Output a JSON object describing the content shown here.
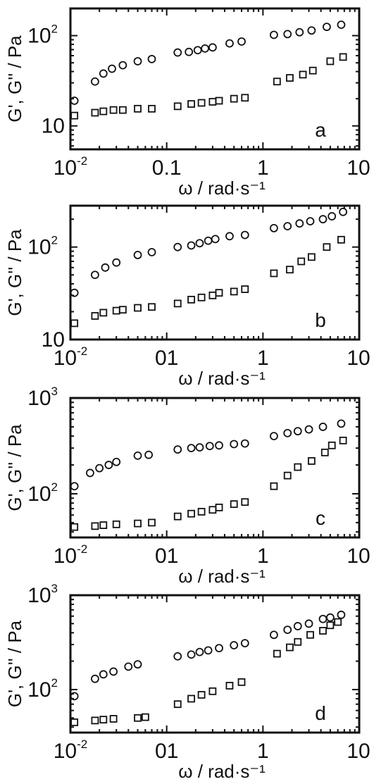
{
  "chart_data": [
    {
      "type": "scatter",
      "panel": "a",
      "xscale": "log",
      "yscale": "log",
      "xlim": [
        0.01,
        10
      ],
      "ylim": [
        5.5,
        200
      ],
      "xticks": [
        {
          "v": 0.01,
          "base": "10",
          "exp": "-2"
        },
        {
          "v": 0.1,
          "base": "0.1",
          "exp": ""
        },
        {
          "v": 1,
          "base": "1",
          "exp": ""
        },
        {
          "v": 10,
          "base": "10",
          "exp": ""
        }
      ],
      "yticks": [
        {
          "v": 10,
          "base": "10",
          "exp": ""
        },
        {
          "v": 100,
          "base": "10",
          "exp": "2"
        }
      ],
      "xlabel": "ω / rad·s⁻¹",
      "ylabel": "G', G'' / Pa",
      "series": [
        {
          "marker": "circle",
          "x": [
            0.011,
            0.018,
            0.022,
            0.027,
            0.035,
            0.05,
            0.07,
            0.13,
            0.17,
            0.21,
            0.25,
            0.3,
            0.45,
            0.6,
            1.3,
            1.8,
            2.4,
            3.2,
            4.6,
            6.5
          ],
          "y": [
            19,
            31,
            38,
            43,
            47,
            52,
            55,
            65,
            66,
            69,
            72,
            74,
            82,
            86,
            102,
            104,
            109,
            114,
            125,
            132
          ]
        },
        {
          "marker": "square",
          "x": [
            0.011,
            0.018,
            0.022,
            0.028,
            0.035,
            0.05,
            0.07,
            0.13,
            0.18,
            0.23,
            0.3,
            0.35,
            0.5,
            0.65,
            1.4,
            1.9,
            2.6,
            3.3,
            5.0,
            6.8
          ],
          "y": [
            13,
            14,
            14.5,
            15,
            15,
            15.5,
            15.5,
            16.5,
            17.5,
            18,
            18.5,
            19,
            20,
            20.5,
            31,
            34,
            37,
            41,
            52,
            58
          ]
        }
      ]
    },
    {
      "type": "scatter",
      "panel": "b",
      "xscale": "log",
      "yscale": "log",
      "xlim": [
        0.01,
        10
      ],
      "ylim": [
        10,
        280
      ],
      "xticks": [
        {
          "v": 0.01,
          "base": "10",
          "exp": "-2"
        },
        {
          "v": 0.1,
          "base": "01",
          "exp": ""
        },
        {
          "v": 1,
          "base": "1",
          "exp": ""
        },
        {
          "v": 10,
          "base": "10",
          "exp": ""
        }
      ],
      "yticks": [
        {
          "v": 10,
          "base": "10",
          "exp": ""
        },
        {
          "v": 100,
          "base": "10",
          "exp": "2"
        }
      ],
      "xlabel": "ω / rad·s⁻¹",
      "ylabel": "G', G'' / Pa",
      "series": [
        {
          "marker": "circle",
          "x": [
            0.011,
            0.018,
            0.023,
            0.03,
            0.05,
            0.07,
            0.13,
            0.18,
            0.22,
            0.27,
            0.32,
            0.45,
            0.65,
            1.3,
            1.8,
            2.4,
            3.1,
            4.2,
            5.2,
            6.8
          ],
          "y": [
            32,
            50,
            60,
            68,
            82,
            88,
            100,
            104,
            110,
            117,
            122,
            131,
            135,
            160,
            168,
            180,
            190,
            200,
            215,
            240
          ]
        },
        {
          "marker": "square",
          "x": [
            0.011,
            0.018,
            0.022,
            0.03,
            0.035,
            0.05,
            0.07,
            0.13,
            0.18,
            0.23,
            0.3,
            0.35,
            0.5,
            0.65,
            1.3,
            1.9,
            2.5,
            3.2,
            4.6,
            6.5
          ],
          "y": [
            15,
            18,
            19.5,
            20.5,
            21,
            22,
            22.5,
            24.5,
            27,
            28.5,
            30,
            32,
            33,
            35,
            52,
            57,
            70,
            78,
            100,
            120
          ]
        }
      ]
    },
    {
      "type": "scatter",
      "panel": "c",
      "xscale": "log",
      "yscale": "log",
      "xlim": [
        0.01,
        10
      ],
      "ylim": [
        35,
        1000
      ],
      "xticks": [
        {
          "v": 0.01,
          "base": "10",
          "exp": "-2"
        },
        {
          "v": 0.1,
          "base": "01",
          "exp": ""
        },
        {
          "v": 1,
          "base": "1",
          "exp": ""
        },
        {
          "v": 10,
          "base": "10",
          "exp": ""
        }
      ],
      "yticks": [
        {
          "v": 100,
          "base": "10",
          "exp": "2"
        },
        {
          "v": 1000,
          "base": "10",
          "exp": "3"
        }
      ],
      "xlabel": "ω / rad·s⁻¹",
      "ylabel": "G', G'' / Pa",
      "series": [
        {
          "marker": "circle",
          "x": [
            0.011,
            0.016,
            0.02,
            0.025,
            0.03,
            0.05,
            0.065,
            0.13,
            0.18,
            0.22,
            0.28,
            0.35,
            0.5,
            0.65,
            1.3,
            1.8,
            2.3,
            3.0,
            4.2,
            6.5
          ],
          "y": [
            120,
            165,
            185,
            200,
            215,
            250,
            255,
            290,
            300,
            305,
            315,
            320,
            330,
            335,
            400,
            430,
            450,
            470,
            500,
            540
          ]
        },
        {
          "marker": "square",
          "x": [
            0.011,
            0.018,
            0.022,
            0.03,
            0.05,
            0.07,
            0.13,
            0.18,
            0.23,
            0.3,
            0.35,
            0.5,
            0.65,
            1.3,
            1.8,
            2.3,
            3.2,
            4.4,
            5.2,
            6.8
          ],
          "y": [
            45,
            46,
            47,
            48,
            49,
            50,
            58,
            62,
            65,
            68,
            72,
            78,
            82,
            120,
            155,
            190,
            220,
            270,
            320,
            360
          ]
        }
      ]
    },
    {
      "type": "scatter",
      "panel": "d",
      "xscale": "log",
      "yscale": "log",
      "xlim": [
        0.01,
        10
      ],
      "ylim": [
        35,
        1000
      ],
      "xticks": [
        {
          "v": 0.01,
          "base": "10",
          "exp": "-2"
        },
        {
          "v": 0.1,
          "base": "01",
          "exp": ""
        },
        {
          "v": 1,
          "base": "1",
          "exp": ""
        },
        {
          "v": 10,
          "base": "10",
          "exp": ""
        }
      ],
      "yticks": [
        {
          "v": 100,
          "base": "10",
          "exp": "2"
        },
        {
          "v": 1000,
          "base": "10",
          "exp": "3"
        }
      ],
      "xlabel": "ω / rad·s⁻¹",
      "ylabel": "G', G'' / Pa",
      "series": [
        {
          "marker": "circle",
          "x": [
            0.011,
            0.018,
            0.022,
            0.028,
            0.04,
            0.05,
            0.13,
            0.18,
            0.22,
            0.27,
            0.35,
            0.5,
            0.65,
            1.3,
            1.8,
            2.3,
            3.0,
            4.2,
            5.0,
            6.5
          ],
          "y": [
            85,
            130,
            145,
            155,
            175,
            185,
            225,
            235,
            250,
            260,
            275,
            295,
            310,
            380,
            430,
            470,
            500,
            560,
            580,
            620
          ]
        },
        {
          "marker": "square",
          "x": [
            0.011,
            0.018,
            0.022,
            0.028,
            0.05,
            0.06,
            0.13,
            0.18,
            0.23,
            0.3,
            0.45,
            0.6,
            1.4,
            1.9,
            2.3,
            3.1,
            4.2,
            5.0,
            6.0
          ],
          "y": [
            45,
            47,
            48,
            49,
            50,
            51,
            70,
            80,
            88,
            96,
            110,
            120,
            240,
            280,
            320,
            380,
            420,
            480,
            520
          ]
        }
      ]
    }
  ]
}
